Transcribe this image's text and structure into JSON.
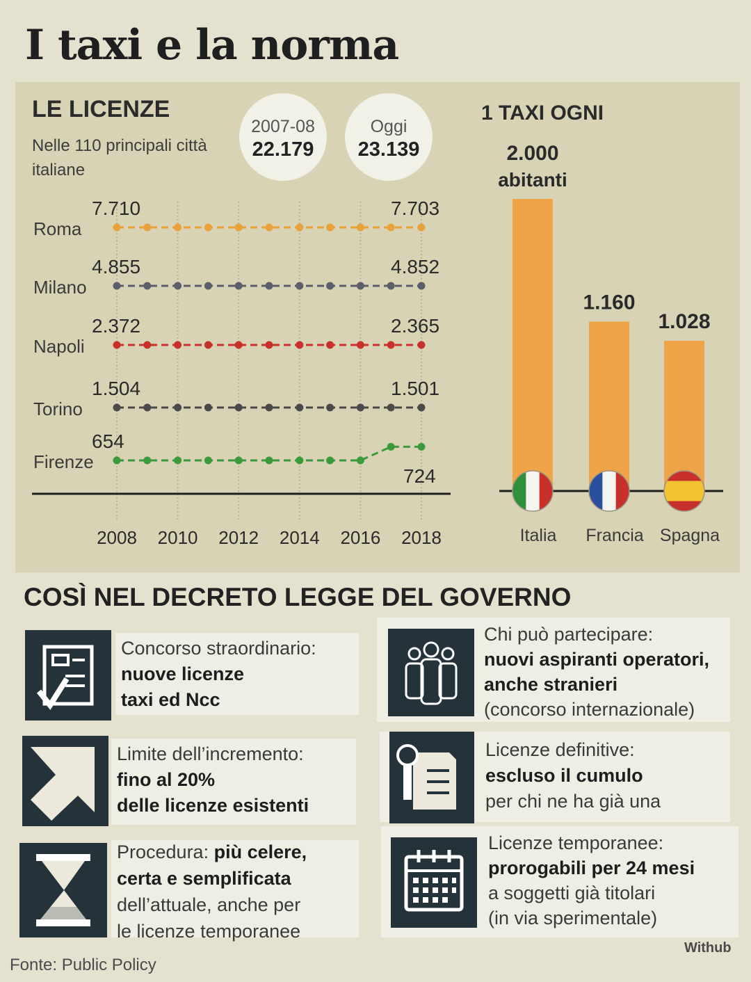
{
  "title": "I taxi e la norma",
  "licenze": {
    "title": "LE LICENZE",
    "subtitle": "Nelle 110 principali città italiane",
    "bubble1": {
      "label": "2007-08",
      "value": "22.179"
    },
    "bubble2": {
      "label": "Oggi",
      "value": "23.139"
    }
  },
  "ratio": {
    "title": "1 TAXI OGNI",
    "unit": "abitanti"
  },
  "chart_data": [
    {
      "type": "line",
      "title": "LE LICENZE",
      "x_ticks": [
        "2008",
        "2010",
        "2012",
        "2014",
        "2016",
        "2018"
      ],
      "x": [
        2008,
        2009,
        2010,
        2011,
        2012,
        2013,
        2014,
        2015,
        2016,
        2017,
        2018
      ],
      "series": [
        {
          "name": "Roma",
          "color": "#e9a23b",
          "start_label": "7.710",
          "end_label": "7.703",
          "start": 7710,
          "end": 7703
        },
        {
          "name": "Milano",
          "color": "#5b5e6b",
          "start_label": "4.855",
          "end_label": "4.852",
          "start": 4855,
          "end": 4852
        },
        {
          "name": "Napoli",
          "color": "#c8312b",
          "start_label": "2.372",
          "end_label": "2.365",
          "start": 2372,
          "end": 2365
        },
        {
          "name": "Torino",
          "color": "#4a4a4a",
          "start_label": "1.504",
          "end_label": "1.501",
          "start": 1504,
          "end": 1501
        },
        {
          "name": "Firenze",
          "color": "#3c9a3a",
          "start_label": "654",
          "end_label": "724",
          "start": 654,
          "end": 724
        }
      ]
    },
    {
      "type": "bar",
      "title": "1 TAXI OGNI",
      "categories": [
        "Italia",
        "Francia",
        "Spagna"
      ],
      "values": [
        2000,
        1160,
        1028
      ],
      "value_labels": [
        "2.000",
        "1.160",
        "1.028"
      ],
      "color": "#efa448"
    }
  ],
  "decreto": {
    "title": "COSÌ NEL DECRETO LEGGE DEL GOVERNO",
    "cards": [
      {
        "icon": "document-check-icon",
        "l1": "Concorso straordinario:",
        "b1": "nuove licenze",
        "b2": "taxi ed Ncc"
      },
      {
        "icon": "people-icon",
        "l1": "Chi può partecipare:",
        "b1": "nuovi aspiranti operatori,",
        "b2": "anche stranieri",
        "l2": "(concorso internazionale)"
      },
      {
        "icon": "arrow-up-right-icon",
        "l1": "Limite dell’incremento:",
        "b1": "fino al 20%",
        "b2": "delle licenze esistenti"
      },
      {
        "icon": "certificate-icon",
        "l1": "Licenze definitive:",
        "b1": "escluso il cumulo",
        "l2": "per chi ne ha già una"
      },
      {
        "icon": "hourglass-icon",
        "l1a": "Procedura: ",
        "b1": "più celere,",
        "b2": "certa e semplificata",
        "l2": "dell’attuale, anche per",
        "l3": "le licenze temporanee"
      },
      {
        "icon": "calendar-icon",
        "l1": "Licenze temporanee:",
        "b1": "prorogabili per 24 mesi",
        "l2": "a soggetti già titolari",
        "l3": "(in via sperimentale)"
      }
    ]
  },
  "source": "Fonte: Public Policy",
  "credit": "Withub"
}
